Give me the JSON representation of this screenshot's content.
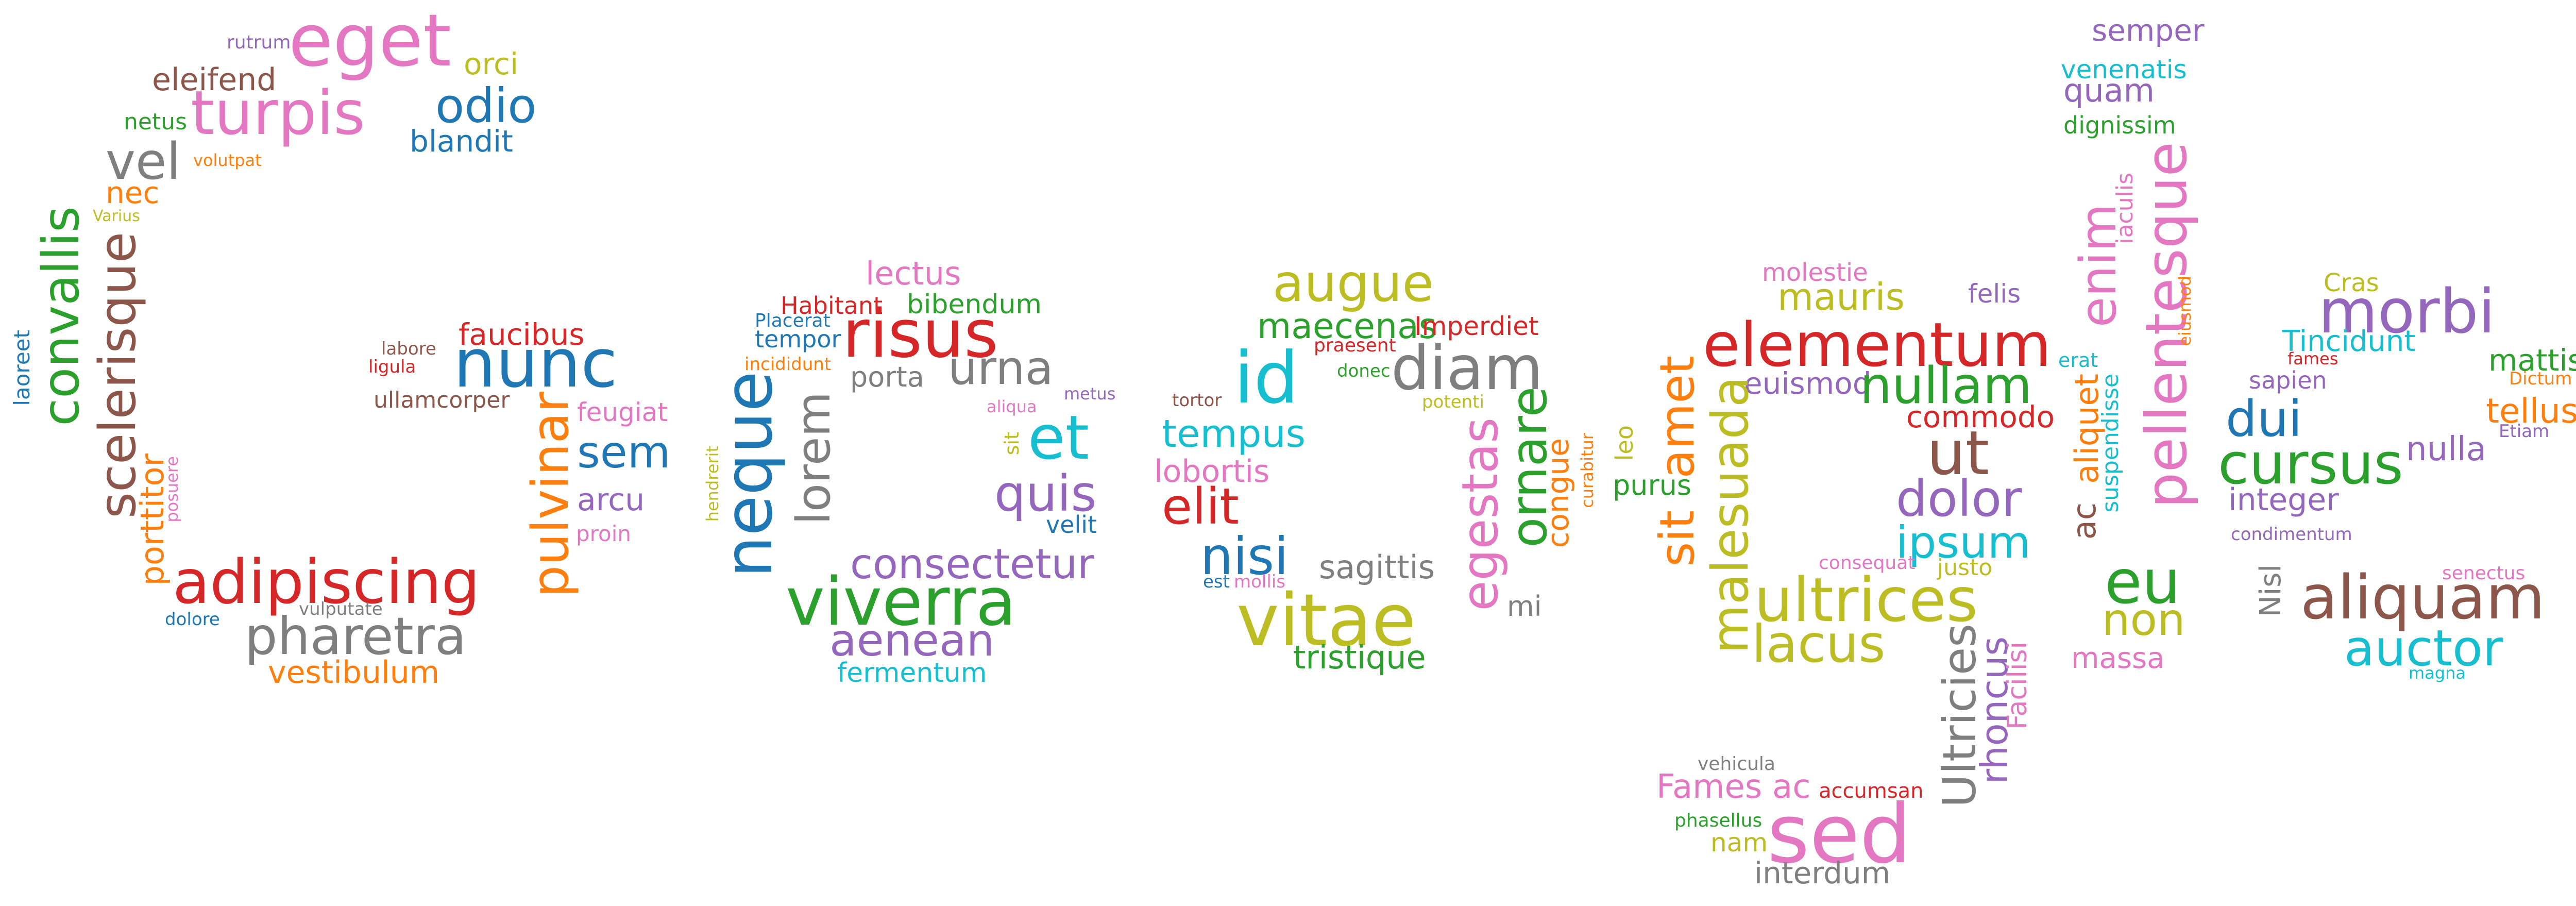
{
  "words": {
    "eget": "eget",
    "rutrum": "rutrum",
    "orci": "orci",
    "eleifend": "eleifend",
    "turpis": "turpis",
    "odio": "odio",
    "netus": "netus",
    "blandit": "blandit",
    "vel": "vel",
    "volutpat": "volutpat",
    "nec": "nec",
    "varius": "Varius",
    "convallis": "convallis",
    "scelerisque": "scelerisque",
    "laoreet": "laoreet",
    "faucibus": "faucibus",
    "labore": "labore",
    "ligula": "ligula",
    "nunc": "nunc",
    "ullamcorper": "ullamcorper",
    "feugiat": "feugiat",
    "pulvinar": "pulvinar",
    "sem": "sem",
    "porttitor": "porttitor",
    "posuere": "posuere",
    "arcu": "arcu",
    "proin": "proin",
    "adipiscing": "adipiscing",
    "vulputate": "vulputate",
    "dolore": "dolore",
    "pharetra": "pharetra",
    "vestibulum": "vestibulum",
    "lectus": "lectus",
    "habitant": "Habitant",
    "bibendum": "bibendum",
    "risus": "risus",
    "placerat": "Placerat",
    "tempor": "tempor",
    "incididunt": "incididunt",
    "porta": "porta",
    "urna": "urna",
    "metus": "metus",
    "aliqua": "aliqua",
    "neque": "neque",
    "lorem": "lorem",
    "et": "et",
    "sit_g2": "sit",
    "hendrerit": "hendrerit",
    "quis": "quis",
    "velit": "velit",
    "consectetur": "consectetur",
    "viverra": "viverra",
    "aenean": "aenean",
    "fermentum": "fermentum",
    "augue": "augue",
    "maecenas": "maecenas",
    "imperdiet": "Imperdiet",
    "praesent": "praesent",
    "diam": "diam",
    "id": "id",
    "donec": "donec",
    "tortor": "tortor",
    "potenti": "potenti",
    "tempus": "tempus",
    "lobortis": "lobortis",
    "elit": "elit",
    "egestas": "egestas",
    "ornare": "ornare",
    "congue": "congue",
    "curabitur": "curabitur",
    "nisi": "nisi",
    "sagittis": "sagittis",
    "est": "est",
    "mollis": "mollis",
    "mi": "mi",
    "vitae": "vitae",
    "tristique": "tristique",
    "molestie": "molestie",
    "mauris": "mauris",
    "felis": "felis",
    "elementum": "elementum",
    "euismod": "euismod",
    "nullam": "nullam",
    "commodo": "commodo",
    "leo": "leo",
    "purus": "purus",
    "ut": "ut",
    "amet": "amet",
    "sit_g4": "sit",
    "malesuada": "malesuada",
    "dolor": "dolor",
    "ipsum": "ipsum",
    "consequat": "consequat",
    "justo": "justo",
    "ultrices": "ultrices",
    "lacus": "lacus",
    "ultricies": "Ultricies",
    "rhoncus": "rhoncus",
    "facilisi": "Facilisi",
    "vehicula": "vehicula",
    "fames": "Fames",
    "ac_g4": "ac",
    "accumsan": "accumsan",
    "phasellus": "phasellus",
    "nam": "nam",
    "sed": "sed",
    "interdum": "interdum",
    "semper": "semper",
    "venenatis": "venenatis",
    "quam": "quam",
    "dignissim": "dignissim",
    "pellentesque": "pellentesque",
    "iaculis": "iaculis",
    "enim": "enim",
    "eiusmod": "eiusmod",
    "erat": "erat",
    "suspendisse": "suspendisse",
    "aliquet": "aliquet",
    "ac_g5": "ac",
    "eu": "eu",
    "non": "non",
    "massa": "massa",
    "cras": "Cras",
    "morbi": "morbi",
    "tincidunt": "Tincidunt",
    "fames_g6": "fames",
    "mattis": "mattis",
    "dictum": "Dictum",
    "sapien": "sapien",
    "tellus": "tellus",
    "dui": "dui",
    "etiam": "Etiam",
    "nulla": "nulla",
    "cursus": "cursus",
    "integer": "integer",
    "condimentum": "condimentum",
    "nisl": "Nisl",
    "senectus": "senectus",
    "aliquam": "aliquam",
    "auctor": "auctor",
    "magna": "magna"
  },
  "palette": {
    "blue": "#1f77b4",
    "orange": "#ff7f0e",
    "green": "#2ca02c",
    "red": "#d62728",
    "purple": "#9467bd",
    "brown": "#8c564b",
    "pink": "#e377c2",
    "gray": "#7f7f7f",
    "olive": "#bcbd22",
    "cyan": "#17becf",
    "background": "#ffffff"
  }
}
